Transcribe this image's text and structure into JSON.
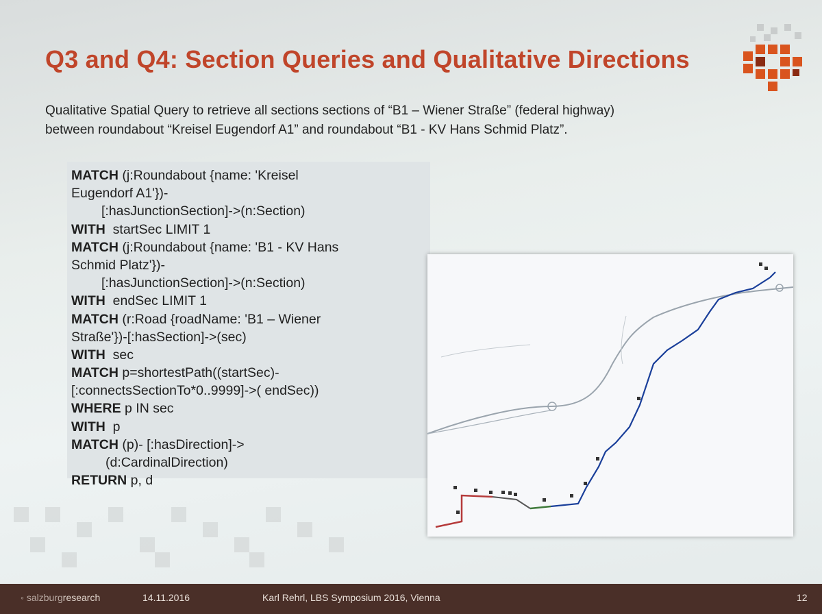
{
  "slide": {
    "title": "Q3 and Q4: Section Queries and Qualitative Directions",
    "intro_line1": "Qualitative Spatial Query to retrieve all sections sections of “B1 – Wiener Straße” (federal highway)",
    "intro_line2": "between roundabout “Kreisel Eugendorf A1” and roundabout “B1 - KV Hans Schmid Platz”."
  },
  "query": {
    "lines": [
      {
        "kw": "MATCH",
        "rest": " (j:Roundabout {name: 'Kreisel"
      },
      {
        "kw": "",
        "rest": "Eugendorf A1'})-"
      },
      {
        "kw": "",
        "rest": "[:hasJunctionSection]->(n:Section)"
      },
      {
        "kw": "WITH",
        "rest": "  startSec LIMIT 1"
      },
      {
        "kw": "MATCH",
        "rest": " (j:Roundabout {name: 'B1 - KV Hans"
      },
      {
        "kw": "",
        "rest": "Schmid Platz'})-"
      },
      {
        "kw": "",
        "rest": "[:hasJunctionSection]->(n:Section)"
      },
      {
        "kw": "WITH",
        "rest": "  endSec LIMIT 1"
      },
      {
        "kw": "MATCH",
        "rest": " (r:Road {roadName: 'B1 – Wiener"
      },
      {
        "kw": "",
        "rest": "Straße'})-[:hasSection]->(sec)"
      },
      {
        "kw": "WITH",
        "rest": "  sec"
      },
      {
        "kw": "MATCH",
        "rest": " p=shortestPath((startSec)-"
      },
      {
        "kw": "",
        "rest": "[:connectsSectionTo*0..9999]->( endSec))"
      },
      {
        "kw": "WHERE",
        "rest": " p IN sec"
      },
      {
        "kw": "WITH",
        "rest": "  p"
      },
      {
        "kw": "MATCH",
        "rest": " (p)- [:hasDirection]->"
      },
      {
        "kw": "",
        "rest": "(d:CardinalDirection)"
      },
      {
        "kw": "RETURN",
        "rest": " p, d"
      }
    ]
  },
  "map": {
    "colors": {
      "road_grey": "#9aa4ad",
      "route_blue": "#1a3f9a",
      "route_green": "#3f7a3a",
      "route_red": "#b53a3a",
      "marker": "#333333"
    }
  },
  "footer": {
    "brand_prefix": "salzburg",
    "brand_suffix": "research",
    "date": "14.11.2016",
    "event": "Karl Rehrl, LBS Symposium 2016, Vienna",
    "page": "12"
  },
  "colors": {
    "title": "#c0452a",
    "footer_bg": "#4a2f28",
    "logo_orange": "#d9541e"
  }
}
